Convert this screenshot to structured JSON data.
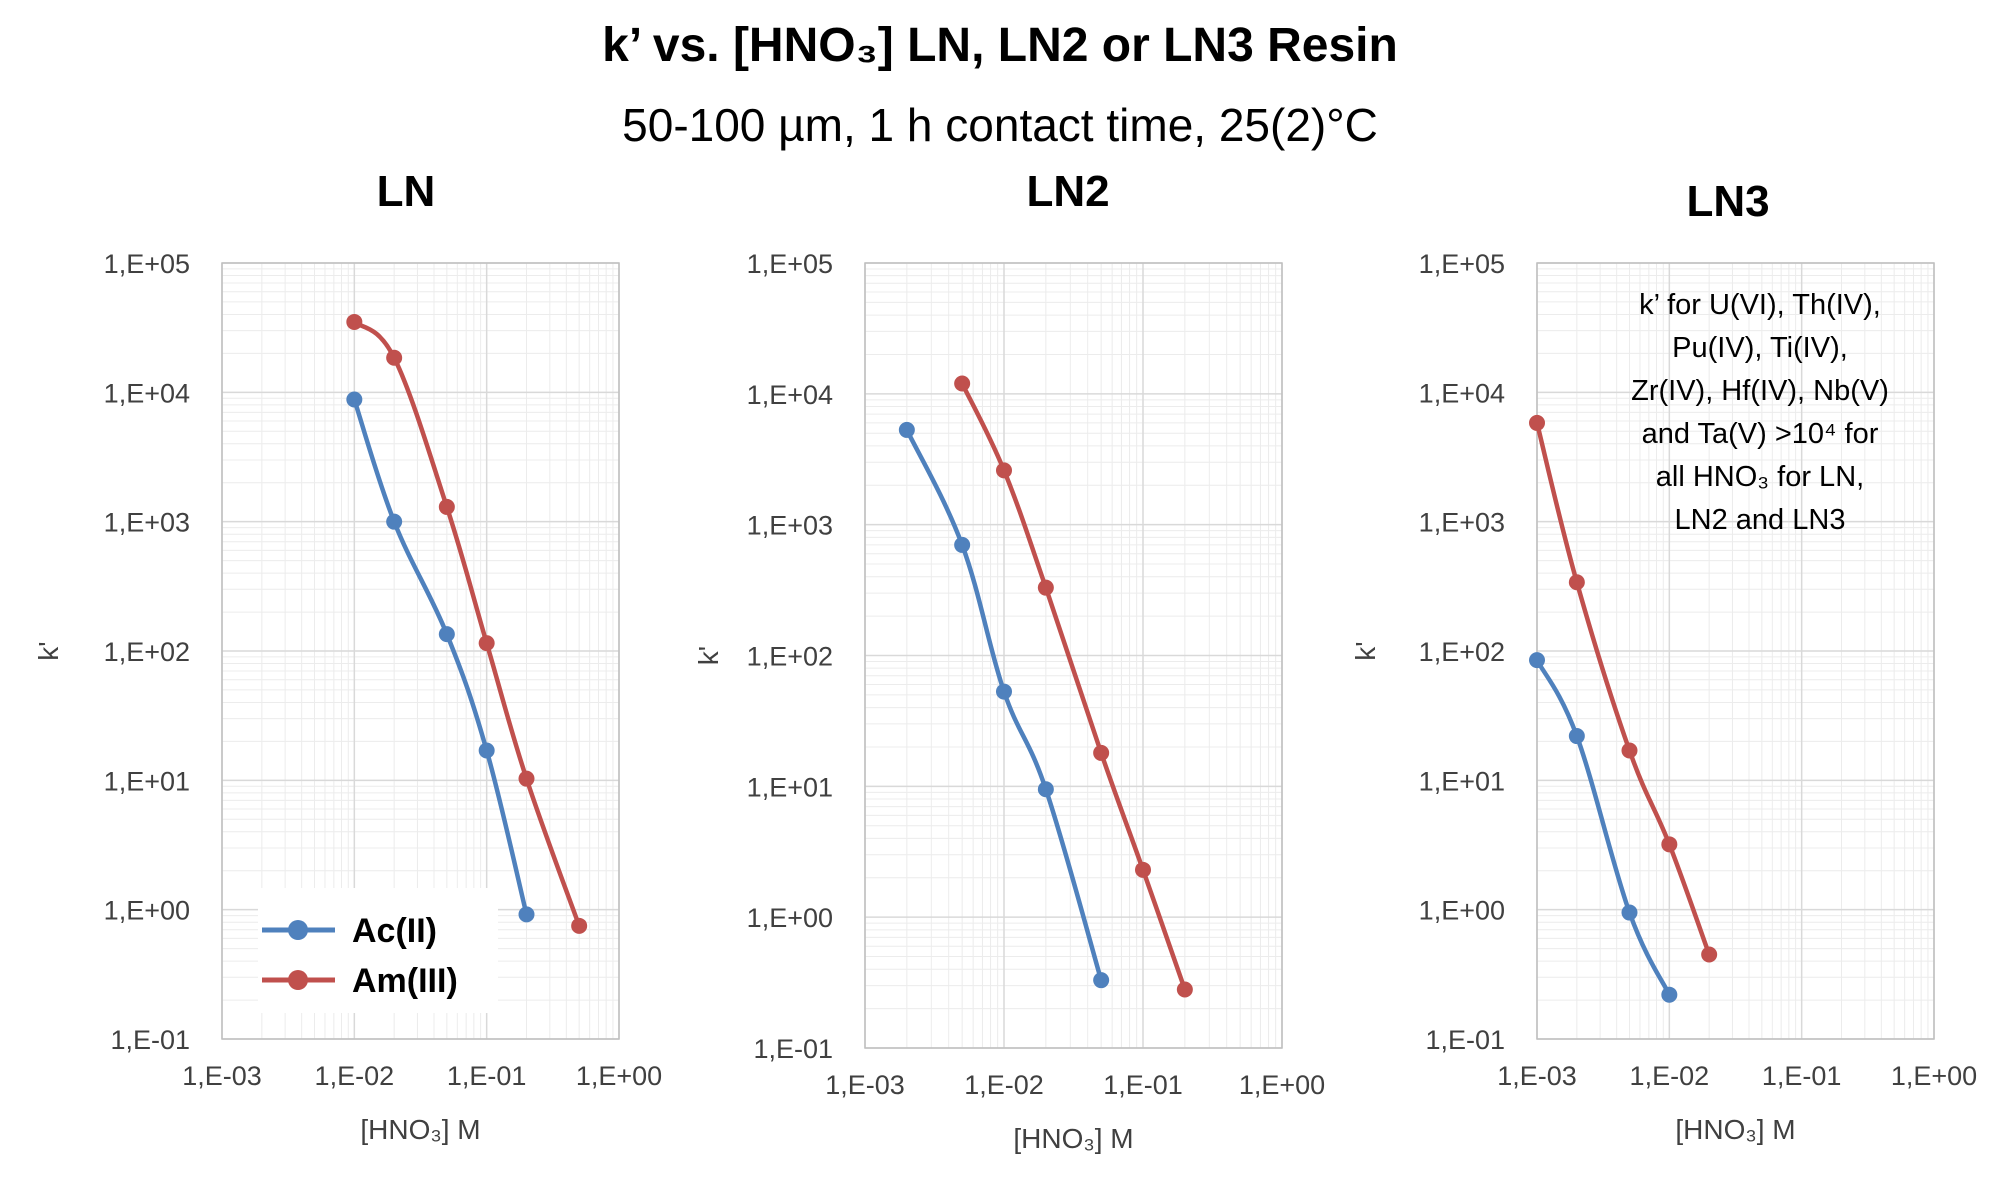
{
  "title": "k’ vs. [HNO₃] LN, LN2 or LN3 Resin",
  "subtitle": "50-100 µm, 1 h contact time, 25(2)°C",
  "colors": {
    "Ac(II)": "#4f81bd",
    "Am(III)": "#c0504d",
    "grid": "#d9d9d9",
    "axis": "#bfbfbf"
  },
  "chart_data": [
    {
      "type": "line",
      "title": "LN",
      "xlabel": "[HNO₃] M",
      "ylabel": "k'",
      "xscale": "log",
      "yscale": "log",
      "xlim": [
        0.001,
        1
      ],
      "ylim": [
        0.1,
        100000
      ],
      "x_ticks": [
        "1,E-03",
        "1,E-02",
        "1,E-01",
        "1,E+00"
      ],
      "y_ticks": [
        "1,E-01",
        "1,E+00",
        "1,E+01",
        "1,E+02",
        "1,E+03",
        "1,E+04",
        "1,E+05"
      ],
      "grid": true,
      "legend": {
        "position": "bottom-left",
        "entries": [
          "Ac(II)",
          "Am(III)"
        ]
      },
      "series": [
        {
          "name": "Ac(II)",
          "x": [
            0.01,
            0.02,
            0.05,
            0.1,
            0.2
          ],
          "y": [
            8800,
            1000,
            135,
            17,
            0.92
          ]
        },
        {
          "name": "Am(III)",
          "x": [
            0.01,
            0.02,
            0.05,
            0.1,
            0.2,
            0.5
          ],
          "y": [
            35000,
            18500,
            1300,
            115,
            10.3,
            0.75
          ]
        }
      ]
    },
    {
      "type": "line",
      "title": "LN2",
      "xlabel": "[HNO₃] M",
      "ylabel": "k'",
      "xscale": "log",
      "yscale": "log",
      "xlim": [
        0.001,
        1
      ],
      "ylim": [
        0.1,
        100000
      ],
      "x_ticks": [
        "1,E-03",
        "1,E-02",
        "1,E-01",
        "1,E+00"
      ],
      "y_ticks": [
        "1,E-01",
        "1,E+00",
        "1,E+01",
        "1,E+02",
        "1,E+03",
        "1,E+04",
        "1,E+05"
      ],
      "grid": true,
      "series": [
        {
          "name": "Ac(II)",
          "x": [
            0.002,
            0.005,
            0.01,
            0.02,
            0.05
          ],
          "y": [
            5300,
            700,
            53,
            9.5,
            0.33
          ]
        },
        {
          "name": "Am(III)",
          "x": [
            0.005,
            0.01,
            0.02,
            0.05,
            0.1,
            0.2
          ],
          "y": [
            12000,
            2600,
            330,
            18,
            2.3,
            0.28
          ]
        }
      ]
    },
    {
      "type": "line",
      "title": "LN3",
      "xlabel": "[HNO₃] M",
      "ylabel": "k'",
      "xscale": "log",
      "yscale": "log",
      "xlim": [
        0.001,
        1
      ],
      "ylim": [
        0.1,
        100000
      ],
      "x_ticks": [
        "1,E-03",
        "1,E-02",
        "1,E-01",
        "1,E+00"
      ],
      "y_ticks": [
        "1,E-01",
        "1,E+00",
        "1,E+01",
        "1,E+02",
        "1,E+03",
        "1,E+04",
        "1,E+05"
      ],
      "grid": true,
      "annotation": [
        "k’ for U(VI), Th(IV),",
        "Pu(IV), Ti(IV),",
        "Zr(IV), Hf(IV), Nb(V)",
        "and Ta(V) >10⁴ for",
        "all HNO₃ for LN,",
        "LN2 and LN3"
      ],
      "series": [
        {
          "name": "Ac(II)",
          "x": [
            0.001,
            0.002,
            0.005,
            0.01
          ],
          "y": [
            85,
            22,
            0.95,
            0.22
          ]
        },
        {
          "name": "Am(III)",
          "x": [
            0.001,
            0.002,
            0.005,
            0.01,
            0.02
          ],
          "y": [
            5800,
            340,
            17,
            3.2,
            0.45
          ]
        }
      ]
    }
  ]
}
